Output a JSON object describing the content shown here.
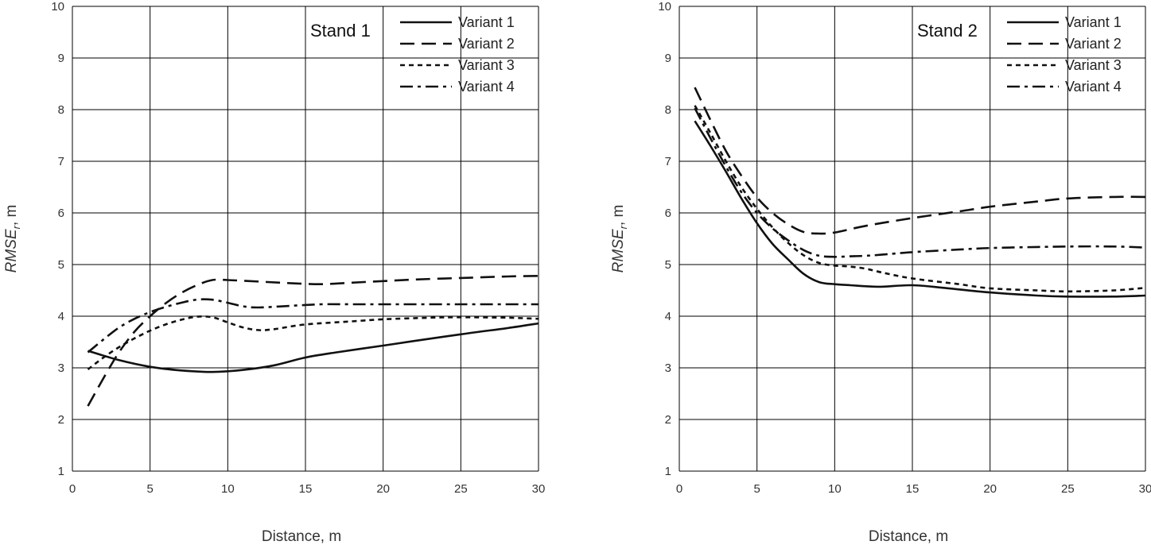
{
  "chart_data": [
    {
      "type": "line",
      "panel_label": "Stand 1",
      "xlabel": "Distance, m",
      "ylabel": "RMSE",
      "ylabel_sub": "r",
      "ylabel_unit": ", m",
      "xlim": [
        0,
        30
      ],
      "ylim": [
        1,
        10
      ],
      "xticks": [
        0,
        5,
        10,
        15,
        20,
        25,
        30
      ],
      "yticks": [
        1,
        2,
        3,
        4,
        5,
        6,
        7,
        8,
        9,
        10
      ],
      "grid": true,
      "legend_position": "top-right",
      "series": [
        {
          "name": "Variant 1",
          "dash": "solid",
          "x": [
            1,
            3,
            5,
            7,
            9,
            11,
            13,
            15,
            17,
            20,
            22,
            25,
            28,
            30
          ],
          "y": [
            3.33,
            3.15,
            3.02,
            2.95,
            2.92,
            2.96,
            3.05,
            3.2,
            3.3,
            3.43,
            3.52,
            3.65,
            3.77,
            3.86
          ]
        },
        {
          "name": "Variant 2",
          "dash": "long-dash",
          "x": [
            1,
            2,
            3,
            4,
            5,
            6,
            7,
            8,
            9,
            10,
            12,
            14,
            16,
            18,
            20,
            22,
            25,
            28,
            30
          ],
          "y": [
            2.26,
            2.8,
            3.3,
            3.7,
            4.0,
            4.25,
            4.45,
            4.6,
            4.7,
            4.7,
            4.67,
            4.64,
            4.62,
            4.65,
            4.68,
            4.71,
            4.74,
            4.77,
            4.78
          ]
        },
        {
          "name": "Variant 3",
          "dash": "short-dash",
          "x": [
            1,
            2,
            3,
            4,
            5,
            6,
            7,
            8,
            9,
            10,
            11,
            12,
            13,
            15,
            18,
            20,
            23,
            25,
            28,
            30
          ],
          "y": [
            2.97,
            3.2,
            3.4,
            3.57,
            3.72,
            3.84,
            3.93,
            3.99,
            3.98,
            3.88,
            3.78,
            3.73,
            3.75,
            3.84,
            3.9,
            3.94,
            3.97,
            3.98,
            3.97,
            3.95
          ]
        },
        {
          "name": "Variant 4",
          "dash": "dash-dot",
          "x": [
            1,
            2,
            3,
            4,
            5,
            6,
            7,
            8,
            9,
            10,
            11,
            12,
            14,
            16,
            18,
            20,
            25,
            30
          ],
          "y": [
            3.3,
            3.55,
            3.78,
            3.95,
            4.08,
            4.18,
            4.26,
            4.32,
            4.32,
            4.26,
            4.19,
            4.17,
            4.2,
            4.23,
            4.23,
            4.23,
            4.23,
            4.23
          ]
        }
      ]
    },
    {
      "type": "line",
      "panel_label": "Stand 2",
      "xlabel": "Distance, m",
      "ylabel": "RMSE",
      "ylabel_sub": "r",
      "ylabel_unit": ", m",
      "xlim": [
        0,
        30
      ],
      "ylim": [
        1,
        10
      ],
      "xticks": [
        0,
        5,
        10,
        15,
        20,
        25,
        30
      ],
      "yticks": [
        1,
        2,
        3,
        4,
        5,
        6,
        7,
        8,
        9,
        10
      ],
      "grid": true,
      "legend_position": "top-right",
      "series": [
        {
          "name": "Variant 1",
          "dash": "solid",
          "x": [
            1,
            2,
            3,
            4,
            5,
            6,
            7,
            8,
            9,
            10,
            11,
            12,
            13,
            15,
            17,
            20,
            23,
            25,
            28,
            30
          ],
          "y": [
            7.78,
            7.3,
            6.8,
            6.28,
            5.8,
            5.4,
            5.1,
            4.82,
            4.66,
            4.62,
            4.6,
            4.58,
            4.57,
            4.6,
            4.55,
            4.46,
            4.4,
            4.38,
            4.38,
            4.4
          ]
        },
        {
          "name": "Variant 2",
          "dash": "long-dash",
          "x": [
            1,
            2,
            3,
            4,
            5,
            6,
            7,
            8,
            9,
            10,
            12,
            15,
            18,
            20,
            23,
            25,
            28,
            30
          ],
          "y": [
            8.43,
            7.8,
            7.2,
            6.72,
            6.3,
            6.0,
            5.78,
            5.63,
            5.6,
            5.62,
            5.75,
            5.9,
            6.03,
            6.12,
            6.22,
            6.28,
            6.31,
            6.31
          ]
        },
        {
          "name": "Variant 3",
          "dash": "short-dash",
          "x": [
            1,
            2,
            3,
            4,
            5,
            6,
            7,
            8,
            9,
            10,
            11,
            12,
            13,
            15,
            18,
            20,
            23,
            25,
            28,
            30
          ],
          "y": [
            8.08,
            7.55,
            7.0,
            6.5,
            6.08,
            5.72,
            5.42,
            5.18,
            5.03,
            4.98,
            4.96,
            4.92,
            4.85,
            4.73,
            4.62,
            4.54,
            4.5,
            4.48,
            4.5,
            4.55
          ]
        },
        {
          "name": "Variant 4",
          "dash": "dash-dot",
          "x": [
            1,
            2,
            3,
            4,
            5,
            6,
            7,
            8,
            9,
            10,
            11,
            12,
            13,
            15,
            18,
            20,
            23,
            25,
            28,
            30
          ],
          "y": [
            8.03,
            7.45,
            6.9,
            6.4,
            6.0,
            5.7,
            5.47,
            5.28,
            5.17,
            5.15,
            5.16,
            5.17,
            5.19,
            5.24,
            5.29,
            5.32,
            5.34,
            5.35,
            5.35,
            5.33
          ]
        }
      ]
    }
  ]
}
